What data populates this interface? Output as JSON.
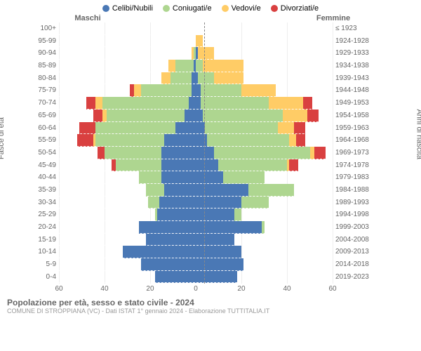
{
  "type": "population-pyramid",
  "legend": [
    {
      "label": "Celibi/Nubili",
      "color": "#4a78b5"
    },
    {
      "label": "Coniugati/e",
      "color": "#aed690"
    },
    {
      "label": "Vedovi/e",
      "color": "#ffcc66"
    },
    {
      "label": "Divorziati/e",
      "color": "#d94040"
    }
  ],
  "header": {
    "male": "Maschi",
    "female": "Femmine"
  },
  "ylabel_left": "Fasce di età",
  "ylabel_right": "Anni di nascita",
  "xmax": 60,
  "xticks": [
    60,
    40,
    20,
    0,
    20,
    40,
    60
  ],
  "footer": {
    "title": "Popolazione per età, sesso e stato civile - 2024",
    "subtitle": "COMUNE DI STROPPIANA (VC) - Dati ISTAT 1° gennaio 2024 - Elaborazione TUTTITALIA.IT"
  },
  "colors": {
    "celibi": "#4a78b5",
    "coniugati": "#aed690",
    "vedovi": "#ffcc66",
    "divorziati": "#d94040",
    "grid": "#eeeeee",
    "center_line": "#888888",
    "row_dash": "#ffffff",
    "text": "#666666",
    "background": "#ffffff"
  },
  "label_fontsize": 10,
  "legend_fontsize": 11,
  "rows": [
    {
      "age": "100+",
      "birth": "≤ 1923",
      "m": {
        "c": 0,
        "co": 0,
        "v": 0,
        "d": 0
      },
      "f": {
        "c": 0,
        "co": 0,
        "v": 0,
        "d": 0
      }
    },
    {
      "age": "95-99",
      "birth": "1924-1928",
      "m": {
        "c": 0,
        "co": 0,
        "v": 0,
        "d": 0
      },
      "f": {
        "c": 0,
        "co": 0,
        "v": 3,
        "d": 0
      }
    },
    {
      "age": "90-94",
      "birth": "1929-1933",
      "m": {
        "c": 0,
        "co": 1,
        "v": 1,
        "d": 0
      },
      "f": {
        "c": 1,
        "co": 0,
        "v": 7,
        "d": 0
      }
    },
    {
      "age": "85-89",
      "birth": "1934-1938",
      "m": {
        "c": 1,
        "co": 8,
        "v": 3,
        "d": 0
      },
      "f": {
        "c": 0,
        "co": 3,
        "v": 18,
        "d": 0
      }
    },
    {
      "age": "80-84",
      "birth": "1939-1943",
      "m": {
        "c": 2,
        "co": 9,
        "v": 4,
        "d": 0
      },
      "f": {
        "c": 1,
        "co": 7,
        "v": 13,
        "d": 0
      }
    },
    {
      "age": "75-79",
      "birth": "1944-1948",
      "m": {
        "c": 2,
        "co": 22,
        "v": 3,
        "d": 2
      },
      "f": {
        "c": 2,
        "co": 18,
        "v": 15,
        "d": 0
      }
    },
    {
      "age": "70-74",
      "birth": "1949-1953",
      "m": {
        "c": 3,
        "co": 38,
        "v": 3,
        "d": 4
      },
      "f": {
        "c": 2,
        "co": 30,
        "v": 15,
        "d": 4
      }
    },
    {
      "age": "65-69",
      "birth": "1954-1958",
      "m": {
        "c": 5,
        "co": 34,
        "v": 2,
        "d": 4
      },
      "f": {
        "c": 3,
        "co": 35,
        "v": 11,
        "d": 5
      }
    },
    {
      "age": "60-64",
      "birth": "1959-1963",
      "m": {
        "c": 9,
        "co": 35,
        "v": 0,
        "d": 7
      },
      "f": {
        "c": 4,
        "co": 32,
        "v": 7,
        "d": 5
      }
    },
    {
      "age": "55-59",
      "birth": "1964-1968",
      "m": {
        "c": 14,
        "co": 30,
        "v": 1,
        "d": 7
      },
      "f": {
        "c": 5,
        "co": 36,
        "v": 3,
        "d": 4
      }
    },
    {
      "age": "50-54",
      "birth": "1969-1973",
      "m": {
        "c": 15,
        "co": 25,
        "v": 0,
        "d": 3
      },
      "f": {
        "c": 8,
        "co": 42,
        "v": 2,
        "d": 5
      }
    },
    {
      "age": "45-49",
      "birth": "1974-1978",
      "m": {
        "c": 15,
        "co": 20,
        "v": 0,
        "d": 2
      },
      "f": {
        "c": 10,
        "co": 30,
        "v": 1,
        "d": 4
      }
    },
    {
      "age": "40-44",
      "birth": "1979-1983",
      "m": {
        "c": 15,
        "co": 10,
        "v": 0,
        "d": 0
      },
      "f": {
        "c": 12,
        "co": 18,
        "v": 0,
        "d": 0
      }
    },
    {
      "age": "35-39",
      "birth": "1984-1988",
      "m": {
        "c": 14,
        "co": 8,
        "v": 0,
        "d": 0
      },
      "f": {
        "c": 23,
        "co": 20,
        "v": 0,
        "d": 0
      }
    },
    {
      "age": "30-34",
      "birth": "1989-1993",
      "m": {
        "c": 16,
        "co": 5,
        "v": 0,
        "d": 0
      },
      "f": {
        "c": 20,
        "co": 12,
        "v": 0,
        "d": 0
      }
    },
    {
      "age": "25-29",
      "birth": "1994-1998",
      "m": {
        "c": 17,
        "co": 1,
        "v": 0,
        "d": 0
      },
      "f": {
        "c": 17,
        "co": 3,
        "v": 0,
        "d": 0
      }
    },
    {
      "age": "20-24",
      "birth": "1999-2003",
      "m": {
        "c": 25,
        "co": 0,
        "v": 0,
        "d": 0
      },
      "f": {
        "c": 29,
        "co": 1,
        "v": 0,
        "d": 0
      }
    },
    {
      "age": "15-19",
      "birth": "2004-2008",
      "m": {
        "c": 22,
        "co": 0,
        "v": 0,
        "d": 0
      },
      "f": {
        "c": 17,
        "co": 0,
        "v": 0,
        "d": 0
      }
    },
    {
      "age": "10-14",
      "birth": "2009-2013",
      "m": {
        "c": 32,
        "co": 0,
        "v": 0,
        "d": 0
      },
      "f": {
        "c": 20,
        "co": 0,
        "v": 0,
        "d": 0
      }
    },
    {
      "age": "5-9",
      "birth": "2014-2018",
      "m": {
        "c": 24,
        "co": 0,
        "v": 0,
        "d": 0
      },
      "f": {
        "c": 21,
        "co": 0,
        "v": 0,
        "d": 0
      }
    },
    {
      "age": "0-4",
      "birth": "2019-2023",
      "m": {
        "c": 18,
        "co": 0,
        "v": 0,
        "d": 0
      },
      "f": {
        "c": 18,
        "co": 0,
        "v": 0,
        "d": 0
      }
    }
  ]
}
